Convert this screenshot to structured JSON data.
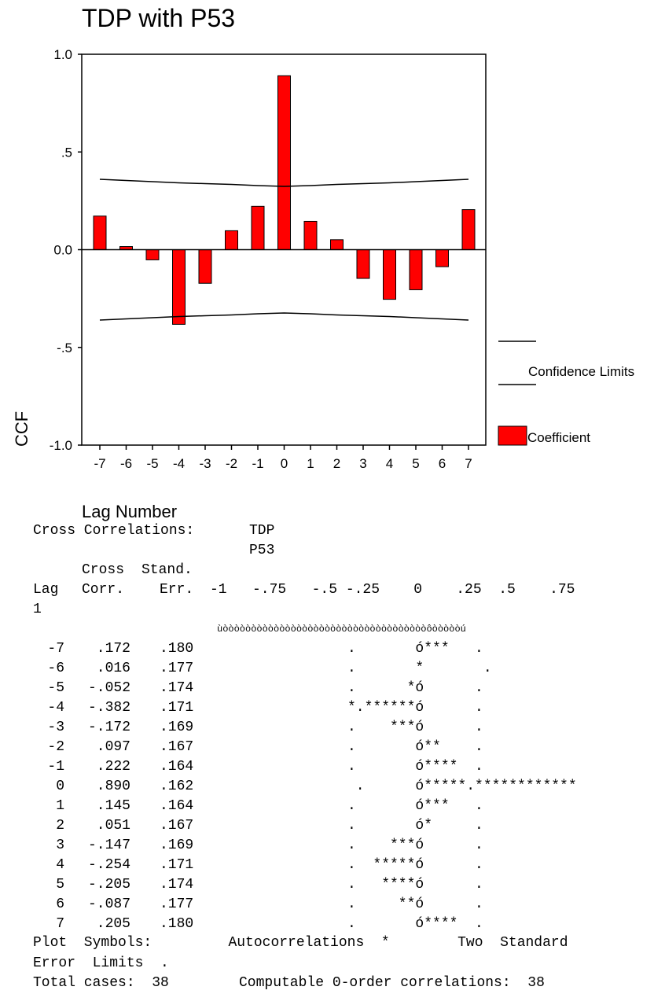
{
  "chart_data": {
    "type": "bar",
    "title": "TDP with P53",
    "xlabel": "Lag Number",
    "ylabel": "CCF",
    "categories": [
      "-7",
      "-6",
      "-5",
      "-4",
      "-3",
      "-2",
      "-1",
      "0",
      "1",
      "2",
      "3",
      "4",
      "5",
      "6",
      "7"
    ],
    "series": [
      {
        "name": "Coefficient",
        "values": [
          0.172,
          0.016,
          -0.052,
          -0.382,
          -0.172,
          0.097,
          0.222,
          0.89,
          0.145,
          0.051,
          -0.147,
          -0.254,
          -0.205,
          -0.087,
          0.205
        ]
      }
    ],
    "confidence_limits": {
      "name": "Confidence Limits",
      "upper": [
        0.36,
        0.354,
        0.348,
        0.342,
        0.338,
        0.334,
        0.328,
        0.324,
        0.328,
        0.334,
        0.338,
        0.342,
        0.348,
        0.354,
        0.36
      ],
      "lower": [
        -0.36,
        -0.354,
        -0.348,
        -0.342,
        -0.338,
        -0.334,
        -0.328,
        -0.324,
        -0.328,
        -0.334,
        -0.338,
        -0.342,
        -0.348,
        -0.354,
        -0.36
      ]
    },
    "ylim": [
      -1.0,
      1.0
    ],
    "yticks": [
      "-1.0",
      "-.5",
      "0.0",
      ".5",
      "1.0"
    ],
    "legend": [
      "Confidence Limits",
      "Coefficient"
    ],
    "legend_position": "right",
    "bar_color": "#ff0000",
    "grid": false
  },
  "listing": {
    "header_label": "Cross Correlations:",
    "series1": "TDP",
    "series2": "P53",
    "col_cross": "Cross",
    "col_stand": "Stand.",
    "col_lag": "Lag",
    "col_corr": "Corr.",
    "col_err": "Err.",
    "scale": "-1   -.75   -.5 -.25    0    .25  .5    .75",
    "scale_end": "1",
    "border_line": "ùòòòòòòòòòòòòòòòòòòòòòòòòòòòòòòòòòòòòôòòòòòú",
    "rows": [
      {
        "lag": "-7",
        "corr": ".172",
        "err": ".180",
        "plot": ".       ó***   ."
      },
      {
        "lag": "-6",
        "corr": ".016",
        "err": ".177",
        "plot": ".       *       ."
      },
      {
        "lag": "-5",
        "corr": "-.052",
        "err": ".174",
        "plot": ".      *ó      ."
      },
      {
        "lag": "-4",
        "corr": "-.382",
        "err": ".171",
        "plot": "*.******ó      ."
      },
      {
        "lag": "-3",
        "corr": "-.172",
        "err": ".169",
        "plot": ".    ***ó      ."
      },
      {
        "lag": "-2",
        "corr": ".097",
        "err": ".167",
        "plot": ".       ó**    ."
      },
      {
        "lag": "-1",
        "corr": ".222",
        "err": ".164",
        "plot": ".       ó****  ."
      },
      {
        "lag": "0",
        "corr": ".890",
        "err": ".162",
        "plot": " .      ó*****.************"
      },
      {
        "lag": "1",
        "corr": ".145",
        "err": ".164",
        "plot": ".       ó***   ."
      },
      {
        "lag": "2",
        "corr": ".051",
        "err": ".167",
        "plot": ".       ó*     ."
      },
      {
        "lag": "3",
        "corr": "-.147",
        "err": ".169",
        "plot": ".    ***ó      ."
      },
      {
        "lag": "4",
        "corr": "-.254",
        "err": ".171",
        "plot": ".  *****ó      ."
      },
      {
        "lag": "5",
        "corr": "-.205",
        "err": ".174",
        "plot": ".   ****ó      ."
      },
      {
        "lag": "6",
        "corr": "-.087",
        "err": ".177",
        "plot": ".     **ó      ."
      },
      {
        "lag": "7",
        "corr": ".205",
        "err": ".180",
        "plot": ".       ó****  ."
      }
    ],
    "plot_symbols_line": "Plot  Symbols:         Autocorrelations  *        Two  Standard",
    "error_limits_line": "Error  Limits  .",
    "total_cases_label": "Total cases:",
    "total_cases": "38",
    "computable_label": "Computable 0-order correlations:",
    "computable": "38"
  }
}
